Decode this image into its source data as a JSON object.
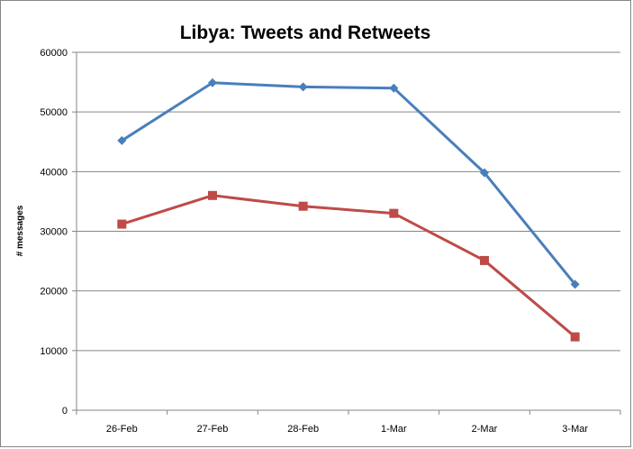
{
  "chart_data": {
    "type": "line",
    "title": "Libya: Tweets and Retweets",
    "xlabel": "",
    "ylabel": "# messages",
    "categories": [
      "26-Feb",
      "27-Feb",
      "28-Feb",
      "1-Mar",
      "2-Mar",
      "3-Mar"
    ],
    "ylim": [
      0,
      60000
    ],
    "yticks": [
      "0",
      "10000",
      "20000",
      "30000",
      "40000",
      "50000",
      "60000"
    ],
    "grid": true,
    "legend": "none",
    "series": [
      {
        "values": [
          45200,
          54900,
          54200,
          54000,
          39800,
          21100
        ],
        "color": "#4a7ebb",
        "marker": "diamond"
      },
      {
        "values": [
          31200,
          36000,
          34200,
          33000,
          25100,
          12300
        ],
        "color": "#be4b48",
        "marker": "square"
      }
    ]
  }
}
